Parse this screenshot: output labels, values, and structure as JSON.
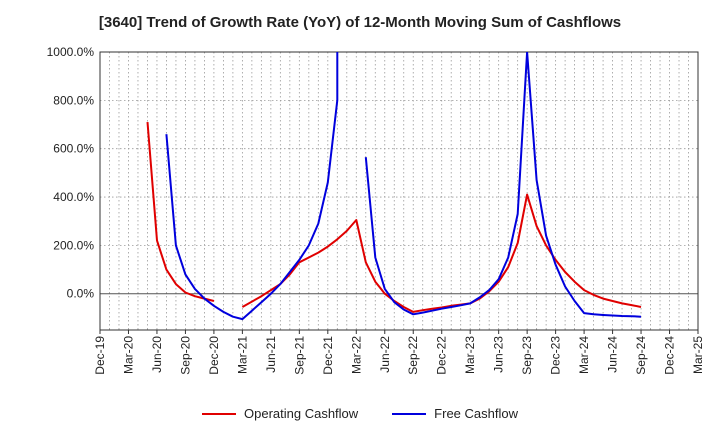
{
  "chart_data": {
    "type": "line",
    "title": "[3640]  Trend of Growth Rate (YoY) of 12-Month Moving Sum of Cashflows",
    "xlabel": "",
    "ylabel": "",
    "ylim": [
      -150,
      1000
    ],
    "yticks": [
      0,
      200,
      400,
      600,
      800,
      1000
    ],
    "ytick_labels": [
      "0.0%",
      "200.0%",
      "400.0%",
      "600.0%",
      "800.0%",
      "1000.0%"
    ],
    "x_tick_labels": [
      "Dec-19",
      "Mar-20",
      "Jun-20",
      "Sep-20",
      "Dec-20",
      "Mar-21",
      "Jun-21",
      "Sep-21",
      "Dec-21",
      "Mar-22",
      "Jun-22",
      "Sep-22",
      "Dec-22",
      "Mar-23",
      "Jun-23",
      "Sep-23",
      "Dec-23",
      "Mar-24",
      "Jun-24",
      "Sep-24",
      "Dec-24",
      "Mar-25"
    ],
    "x_start": "2019-12",
    "x_end": "2025-03",
    "grid": true,
    "legend": "bottom",
    "series": [
      {
        "name": "Operating Cashflow",
        "color": "#e00000",
        "points": [
          [
            "2020-05",
            710
          ],
          [
            "2020-06",
            220
          ],
          [
            "2020-07",
            100
          ],
          [
            "2020-08",
            40
          ],
          [
            "2020-09",
            5
          ],
          [
            "2020-10",
            -10
          ],
          [
            "2020-11",
            -20
          ],
          [
            "2020-12",
            -30
          ],
          [
            "2021-03",
            -55
          ],
          [
            "2021-05",
            -10
          ],
          [
            "2021-07",
            40
          ],
          [
            "2021-08",
            80
          ],
          [
            "2021-09",
            130
          ],
          [
            "2021-10",
            150
          ],
          [
            "2021-11",
            170
          ],
          [
            "2021-12",
            195
          ],
          [
            "2022-01",
            225
          ],
          [
            "2022-02",
            260
          ],
          [
            "2022-03",
            305
          ],
          [
            "2022-04",
            130
          ],
          [
            "2022-05",
            50
          ],
          [
            "2022-06",
            0
          ],
          [
            "2022-07",
            -30
          ],
          [
            "2022-08",
            -55
          ],
          [
            "2022-09",
            -75
          ],
          [
            "2022-10",
            -68
          ],
          [
            "2022-11",
            -62
          ],
          [
            "2022-12",
            -57
          ],
          [
            "2023-01",
            -50
          ],
          [
            "2023-02",
            -45
          ],
          [
            "2023-03",
            -40
          ],
          [
            "2023-04",
            -20
          ],
          [
            "2023-05",
            10
          ],
          [
            "2023-06",
            50
          ],
          [
            "2023-07",
            110
          ],
          [
            "2023-08",
            210
          ],
          [
            "2023-09",
            410
          ],
          [
            "2023-10",
            280
          ],
          [
            "2023-11",
            200
          ],
          [
            "2023-12",
            140
          ],
          [
            "2024-01",
            90
          ],
          [
            "2024-02",
            50
          ],
          [
            "2024-03",
            15
          ],
          [
            "2024-04",
            -5
          ],
          [
            "2024-05",
            -20
          ],
          [
            "2024-06",
            -30
          ],
          [
            "2024-07",
            -40
          ],
          [
            "2024-08",
            -47
          ],
          [
            "2024-09",
            -55
          ]
        ]
      },
      {
        "name": "Free Cashflow",
        "color": "#0000dd",
        "points": [
          [
            "2020-07",
            660
          ],
          [
            "2020-08",
            200
          ],
          [
            "2020-09",
            80
          ],
          [
            "2020-10",
            20
          ],
          [
            "2020-11",
            -20
          ],
          [
            "2020-12",
            -50
          ],
          [
            "2021-01",
            -75
          ],
          [
            "2021-02",
            -95
          ],
          [
            "2021-03",
            -105
          ],
          [
            "2021-04",
            -70
          ],
          [
            "2021-05",
            -35
          ],
          [
            "2021-06",
            0
          ],
          [
            "2021-07",
            40
          ],
          [
            "2021-08",
            90
          ],
          [
            "2021-09",
            140
          ],
          [
            "2021-10",
            200
          ],
          [
            "2021-11",
            290
          ],
          [
            "2021-12",
            460
          ],
          [
            "2022-01",
            800
          ],
          [
            "2022-01",
            1000
          ],
          [
            "2022-04",
            565
          ],
          [
            "2022-05",
            150
          ],
          [
            "2022-06",
            20
          ],
          [
            "2022-07",
            -35
          ],
          [
            "2022-08",
            -65
          ],
          [
            "2022-09",
            -85
          ],
          [
            "2022-10",
            -78
          ],
          [
            "2022-11",
            -70
          ],
          [
            "2022-12",
            -62
          ],
          [
            "2023-01",
            -55
          ],
          [
            "2023-02",
            -48
          ],
          [
            "2023-03",
            -40
          ],
          [
            "2023-04",
            -15
          ],
          [
            "2023-05",
            15
          ],
          [
            "2023-06",
            60
          ],
          [
            "2023-07",
            150
          ],
          [
            "2023-08",
            330
          ],
          [
            "2023-09",
            1000
          ],
          [
            "2023-10",
            470
          ],
          [
            "2023-11",
            240
          ],
          [
            "2023-12",
            120
          ],
          [
            "2024-01",
            30
          ],
          [
            "2024-02",
            -30
          ],
          [
            "2024-03",
            -80
          ],
          [
            "2024-04",
            -85
          ],
          [
            "2024-05",
            -88
          ],
          [
            "2024-06",
            -90
          ],
          [
            "2024-07",
            -92
          ],
          [
            "2024-08",
            -93
          ],
          [
            "2024-09",
            -95
          ]
        ]
      }
    ]
  }
}
